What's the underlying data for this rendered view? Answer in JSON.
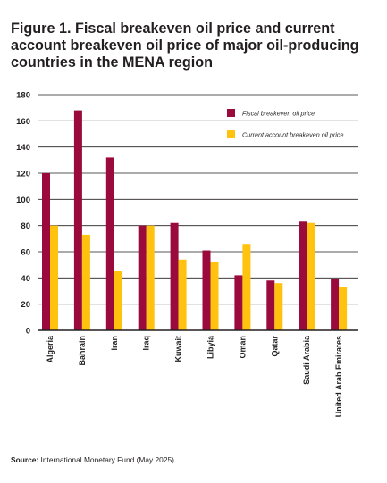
{
  "figure": {
    "title": "Figure 1. Fiscal breakeven oil price and current account breakeven oil price of major oil-producing countries in the MENA region",
    "source_label": "Source:",
    "source_text": "International Monetary Fund (May 2025)"
  },
  "colors": {
    "fiscal": "#9b0a3c",
    "current_account": "#ffc20e",
    "grid": "#231f20"
  },
  "chart_data": {
    "type": "bar",
    "title": "Figure 1. Fiscal breakeven oil price and current account breakeven oil price of major oil-producing countries in the MENA region",
    "xlabel": "",
    "ylabel": "",
    "ylim": [
      0,
      180
    ],
    "yticks": [
      0,
      20,
      40,
      60,
      80,
      100,
      120,
      140,
      160,
      180
    ],
    "grid": true,
    "legend_position": "top-right",
    "categories": [
      "Algeria",
      "Bahrain",
      "Iran",
      "Iraq",
      "Kuwait",
      "Libyia",
      "Oman",
      "Qatar",
      "Saudi Arabia",
      "United Arab Emirates"
    ],
    "series": [
      {
        "name": "Fiscal breakeven oil price",
        "values": [
          120,
          168,
          132,
          80,
          82,
          61,
          42,
          38,
          83,
          39
        ]
      },
      {
        "name": "Current account breakeven oil price",
        "values": [
          80,
          73,
          45,
          80,
          54,
          52,
          66,
          36,
          82,
          33
        ]
      }
    ]
  }
}
